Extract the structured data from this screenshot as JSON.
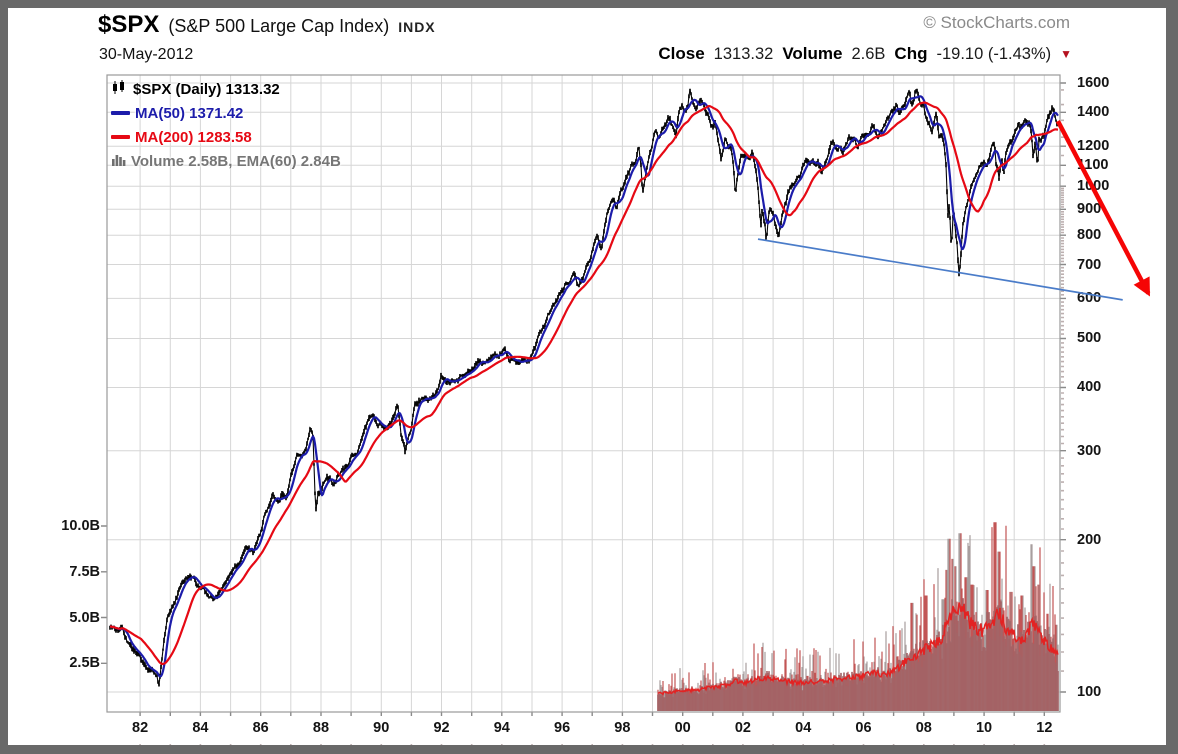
{
  "header": {
    "symbol": "$SPX",
    "index_name": "(S&P 500 Large Cap Index)",
    "exchange": "INDX",
    "date": "30-May-2012",
    "close_label": "Close",
    "close_value": "1313.32",
    "volume_label": "Volume",
    "volume_value": "2.6B",
    "chg_label": "Chg",
    "chg_value": "-19.10 (-1.43%)",
    "down_triangle": "▼",
    "watermark": "© StockCharts.com"
  },
  "legend": {
    "main": "$SPX (Daily) 1313.32",
    "ma50": "MA(50) 1371.42",
    "ma200": "MA(200) 1283.58",
    "volume": "Volume 2.58B, EMA(60) 2.84B"
  },
  "colors": {
    "candle": "#050505",
    "ma50": "#1c1caa",
    "ma200": "#e60914",
    "grid": "#d6d6d6",
    "plot_border": "#9a9a9a",
    "volume_fill": "#a26366",
    "volume_spike_gray": "#a89e9e",
    "volume_spike_red": "#c25555",
    "volume_ema": "#e32222",
    "trendline": "#4a7cc9",
    "arrow": "#f50505",
    "frame": "#696969"
  },
  "chart_data": {
    "type": "line",
    "title": "$SPX (Daily)",
    "subtitle": "S&P 500 Large Cap Index, 1981 - 30-May-2012, log scale",
    "last_close": 1313.32,
    "ma50_value": 1371.42,
    "ma200_value": 1283.58,
    "volume_value": "2.58B",
    "volume_ema60_value": "2.84B",
    "x_axis": {
      "labels": [
        "82",
        "84",
        "86",
        "88",
        "90",
        "92",
        "94",
        "96",
        "98",
        "00",
        "02",
        "04",
        "06",
        "08",
        "10",
        "12"
      ],
      "label_years": [
        1982,
        1984,
        1986,
        1988,
        1990,
        1992,
        1994,
        1996,
        1998,
        2000,
        2002,
        2004,
        2006,
        2008,
        2010,
        2012
      ],
      "range_years": [
        1981.0,
        2012.45
      ],
      "gridline_every_years": 1
    },
    "price_axis": {
      "scale": "log",
      "side": "right",
      "ticks": [
        100,
        200,
        300,
        400,
        500,
        600,
        700,
        800,
        900,
        1000,
        1100,
        1200,
        1400,
        1600
      ],
      "range": [
        95,
        1700
      ]
    },
    "volume_axis": {
      "side": "left",
      "unit": "billions",
      "tick_labels": [
        "2.5B",
        "5.0B",
        "7.5B",
        "10.0B"
      ],
      "tick_values": [
        2.5,
        5.0,
        7.5,
        10.0
      ]
    },
    "price_series": [
      [
        1981.0,
        136
      ],
      [
        1981.2,
        132
      ],
      [
        1981.4,
        133
      ],
      [
        1981.6,
        124
      ],
      [
        1981.8,
        119
      ],
      [
        1982.0,
        117
      ],
      [
        1982.2,
        112
      ],
      [
        1982.4,
        110
      ],
      [
        1982.55,
        108
      ],
      [
        1982.63,
        103
      ],
      [
        1982.75,
        119
      ],
      [
        1982.9,
        139
      ],
      [
        1983.1,
        147
      ],
      [
        1983.3,
        158
      ],
      [
        1983.5,
        167
      ],
      [
        1983.75,
        165
      ],
      [
        1984.0,
        160
      ],
      [
        1984.2,
        156
      ],
      [
        1984.45,
        150
      ],
      [
        1984.65,
        155
      ],
      [
        1984.85,
        166
      ],
      [
        1985.0,
        171
      ],
      [
        1985.25,
        181
      ],
      [
        1985.5,
        192
      ],
      [
        1985.75,
        190
      ],
      [
        1986.0,
        208
      ],
      [
        1986.2,
        232
      ],
      [
        1986.4,
        244
      ],
      [
        1986.55,
        236
      ],
      [
        1986.7,
        248
      ],
      [
        1986.85,
        243
      ],
      [
        1987.0,
        264
      ],
      [
        1987.2,
        292
      ],
      [
        1987.4,
        288
      ],
      [
        1987.55,
        310
      ],
      [
        1987.65,
        333
      ],
      [
        1987.73,
        321
      ],
      [
        1987.79,
        250
      ],
      [
        1987.83,
        227
      ],
      [
        1987.9,
        245
      ],
      [
        1988.0,
        250
      ],
      [
        1988.2,
        266
      ],
      [
        1988.4,
        261
      ],
      [
        1988.6,
        271
      ],
      [
        1988.8,
        276
      ],
      [
        1989.0,
        288
      ],
      [
        1989.2,
        297
      ],
      [
        1989.4,
        320
      ],
      [
        1989.6,
        347
      ],
      [
        1989.75,
        350
      ],
      [
        1989.85,
        341
      ],
      [
        1990.0,
        340
      ],
      [
        1990.1,
        330
      ],
      [
        1990.3,
        341
      ],
      [
        1990.5,
        362
      ],
      [
        1990.55,
        366
      ],
      [
        1990.65,
        322
      ],
      [
        1990.75,
        305
      ],
      [
        1990.79,
        297
      ],
      [
        1990.9,
        318
      ],
      [
        1991.0,
        328
      ],
      [
        1991.1,
        368
      ],
      [
        1991.3,
        378
      ],
      [
        1991.5,
        380
      ],
      [
        1991.7,
        387
      ],
      [
        1991.9,
        390
      ],
      [
        1992.0,
        412
      ],
      [
        1992.2,
        404
      ],
      [
        1992.4,
        410
      ],
      [
        1992.6,
        417
      ],
      [
        1992.8,
        421
      ],
      [
        1993.0,
        437
      ],
      [
        1993.2,
        450
      ],
      [
        1993.4,
        448
      ],
      [
        1993.6,
        459
      ],
      [
        1993.8,
        464
      ],
      [
        1994.0,
        473
      ],
      [
        1994.1,
        480
      ],
      [
        1994.25,
        446
      ],
      [
        1994.4,
        451
      ],
      [
        1994.6,
        460
      ],
      [
        1994.75,
        468
      ],
      [
        1994.9,
        454
      ],
      [
        1995.0,
        466
      ],
      [
        1995.2,
        495
      ],
      [
        1995.4,
        525
      ],
      [
        1995.6,
        560
      ],
      [
        1995.8,
        588
      ],
      [
        1996.0,
        618
      ],
      [
        1996.1,
        636
      ],
      [
        1996.25,
        648
      ],
      [
        1996.4,
        668
      ],
      [
        1996.55,
        632
      ],
      [
        1996.7,
        657
      ],
      [
        1996.85,
        707
      ],
      [
        1997.0,
        744
      ],
      [
        1997.15,
        793
      ],
      [
        1997.3,
        752
      ],
      [
        1997.45,
        855
      ],
      [
        1997.6,
        935
      ],
      [
        1997.73,
        954
      ],
      [
        1997.8,
        912
      ],
      [
        1997.9,
        958
      ],
      [
        1998.0,
        975
      ],
      [
        1998.15,
        1055
      ],
      [
        1998.3,
        1105
      ],
      [
        1998.45,
        1115
      ],
      [
        1998.54,
        1187
      ],
      [
        1998.62,
        1085
      ],
      [
        1998.67,
        957
      ],
      [
        1998.75,
        1025
      ],
      [
        1998.85,
        1120
      ],
      [
        1998.95,
        1190
      ],
      [
        1999.0,
        1230
      ],
      [
        1999.1,
        1285
      ],
      [
        1999.2,
        1240
      ],
      [
        1999.3,
        1300
      ],
      [
        1999.4,
        1335
      ],
      [
        1999.5,
        1372
      ],
      [
        1999.6,
        1330
      ],
      [
        1999.7,
        1282
      ],
      [
        1999.78,
        1250
      ],
      [
        1999.87,
        1395
      ],
      [
        1999.98,
        1465
      ],
      [
        2000.1,
        1390
      ],
      [
        2000.18,
        1425
      ],
      [
        2000.23,
        1525
      ],
      [
        2000.32,
        1450
      ],
      [
        2000.42,
        1425
      ],
      [
        2000.52,
        1478
      ],
      [
        2000.62,
        1517
      ],
      [
        2000.7,
        1480
      ],
      [
        2000.78,
        1430
      ],
      [
        2000.88,
        1400
      ],
      [
        2000.95,
        1330
      ],
      [
        2001.0,
        1325
      ],
      [
        2001.08,
        1370
      ],
      [
        2001.2,
        1240
      ],
      [
        2001.27,
        1160
      ],
      [
        2001.4,
        1255
      ],
      [
        2001.5,
        1224
      ],
      [
        2001.6,
        1210
      ],
      [
        2001.67,
        1130
      ],
      [
        2001.72,
        1040
      ],
      [
        2001.75,
        975
      ],
      [
        2001.82,
        1065
      ],
      [
        2001.92,
        1145
      ],
      [
        2002.0,
        1150
      ],
      [
        2002.1,
        1128
      ],
      [
        2002.2,
        1108
      ],
      [
        2002.3,
        1146
      ],
      [
        2002.42,
        1075
      ],
      [
        2002.5,
        990
      ],
      [
        2002.55,
        910
      ],
      [
        2002.59,
        815
      ],
      [
        2002.64,
        900
      ],
      [
        2002.68,
        870
      ],
      [
        2002.73,
        835
      ],
      [
        2002.78,
        778
      ],
      [
        2002.85,
        895
      ],
      [
        2002.92,
        915
      ],
      [
        2003.0,
        885
      ],
      [
        2003.1,
        838
      ],
      [
        2003.18,
        802
      ],
      [
        2003.3,
        862
      ],
      [
        2003.42,
        925
      ],
      [
        2003.5,
        978
      ],
      [
        2003.6,
        992
      ],
      [
        2003.7,
        1012
      ],
      [
        2003.82,
        1052
      ],
      [
        2003.92,
        1062
      ],
      [
        2004.0,
        1112
      ],
      [
        2004.1,
        1142
      ],
      [
        2004.2,
        1108
      ],
      [
        2004.3,
        1128
      ],
      [
        2004.42,
        1102
      ],
      [
        2004.5,
        1112
      ],
      [
        2004.62,
        1068
      ],
      [
        2004.72,
        1105
      ],
      [
        2004.82,
        1132
      ],
      [
        2004.92,
        1185
      ],
      [
        2005.0,
        1212
      ],
      [
        2005.1,
        1182
      ],
      [
        2005.2,
        1202
      ],
      [
        2005.3,
        1158
      ],
      [
        2005.42,
        1192
      ],
      [
        2005.52,
        1236
      ],
      [
        2005.62,
        1222
      ],
      [
        2005.72,
        1232
      ],
      [
        2005.8,
        1178
      ],
      [
        2005.92,
        1252
      ],
      [
        2006.0,
        1248
      ],
      [
        2006.1,
        1282
      ],
      [
        2006.2,
        1292
      ],
      [
        2006.32,
        1312
      ],
      [
        2006.42,
        1258
      ],
      [
        2006.47,
        1238
      ],
      [
        2006.57,
        1272
      ],
      [
        2006.67,
        1302
      ],
      [
        2006.77,
        1336
      ],
      [
        2006.88,
        1382
      ],
      [
        2007.0,
        1418
      ],
      [
        2007.1,
        1442
      ],
      [
        2007.17,
        1402
      ],
      [
        2007.27,
        1424
      ],
      [
        2007.37,
        1484
      ],
      [
        2007.47,
        1532
      ],
      [
        2007.53,
        1553
      ],
      [
        2007.58,
        1456
      ],
      [
        2007.65,
        1474
      ],
      [
        2007.72,
        1548
      ],
      [
        2007.77,
        1562
      ],
      [
        2007.85,
        1482
      ],
      [
        2007.9,
        1462
      ],
      [
        2008.0,
        1468
      ],
      [
        2008.05,
        1378
      ],
      [
        2008.12,
        1330
      ],
      [
        2008.2,
        1317
      ],
      [
        2008.27,
        1276
      ],
      [
        2008.37,
        1392
      ],
      [
        2008.42,
        1424
      ],
      [
        2008.5,
        1284
      ],
      [
        2008.6,
        1292
      ],
      [
        2008.66,
        1252
      ],
      [
        2008.71,
        1162
      ],
      [
        2008.75,
        1102
      ],
      [
        2008.78,
        942
      ],
      [
        2008.81,
        882
      ],
      [
        2008.85,
        952
      ],
      [
        2008.88,
        845
      ],
      [
        2008.92,
        748
      ],
      [
        2008.96,
        882
      ],
      [
        2009.0,
        902
      ],
      [
        2009.05,
        828
      ],
      [
        2009.1,
        788
      ],
      [
        2009.15,
        702
      ],
      [
        2009.18,
        672
      ],
      [
        2009.23,
        742
      ],
      [
        2009.3,
        852
      ],
      [
        2009.4,
        902
      ],
      [
        2009.5,
        932
      ],
      [
        2009.6,
        992
      ],
      [
        2009.7,
        1032
      ],
      [
        2009.8,
        1062
      ],
      [
        2009.87,
        1092
      ],
      [
        2009.93,
        1102
      ],
      [
        2010.0,
        1116
      ],
      [
        2010.08,
        1068
      ],
      [
        2010.15,
        1102
      ],
      [
        2010.25,
        1172
      ],
      [
        2010.3,
        1202
      ],
      [
        2010.35,
        1188
      ],
      [
        2010.4,
        1102
      ],
      [
        2010.45,
        1088
      ],
      [
        2010.5,
        1028
      ],
      [
        2010.55,
        1102
      ],
      [
        2010.6,
        1122
      ],
      [
        2010.65,
        1048
      ],
      [
        2010.72,
        1142
      ],
      [
        2010.8,
        1182
      ],
      [
        2010.9,
        1222
      ],
      [
        2011.0,
        1258
      ],
      [
        2011.1,
        1312
      ],
      [
        2011.15,
        1332
      ],
      [
        2011.2,
        1298
      ],
      [
        2011.3,
        1332
      ],
      [
        2011.35,
        1362
      ],
      [
        2011.45,
        1318
      ],
      [
        2011.5,
        1342
      ],
      [
        2011.55,
        1292
      ],
      [
        2011.6,
        1198
      ],
      [
        2011.63,
        1122
      ],
      [
        2011.67,
        1172
      ],
      [
        2011.7,
        1218
      ],
      [
        2011.75,
        1132
      ],
      [
        2011.78,
        1098
      ],
      [
        2011.83,
        1252
      ],
      [
        2011.87,
        1218
      ],
      [
        2011.92,
        1256
      ],
      [
        2012.0,
        1258
      ],
      [
        2012.05,
        1312
      ],
      [
        2012.1,
        1352
      ],
      [
        2012.15,
        1366
      ],
      [
        2012.2,
        1392
      ],
      [
        2012.25,
        1408
      ],
      [
        2012.3,
        1416
      ],
      [
        2012.33,
        1390
      ],
      [
        2012.37,
        1372
      ],
      [
        2012.41,
        1322
      ],
      [
        2012.45,
        1313
      ]
    ],
    "volume_start_year": 1999.18,
    "volume_ema_series": [
      [
        1999.18,
        0.85
      ],
      [
        1999.6,
        0.92
      ],
      [
        2000.0,
        1.0
      ],
      [
        2000.5,
        1.05
      ],
      [
        2001.0,
        1.2
      ],
      [
        2001.6,
        1.35
      ],
      [
        2001.75,
        1.55
      ],
      [
        2002.0,
        1.4
      ],
      [
        2002.5,
        1.65
      ],
      [
        2002.85,
        1.75
      ],
      [
        2003.2,
        1.55
      ],
      [
        2003.8,
        1.45
      ],
      [
        2004.5,
        1.5
      ],
      [
        2005.0,
        1.6
      ],
      [
        2005.8,
        1.75
      ],
      [
        2006.3,
        1.95
      ],
      [
        2006.8,
        1.9
      ],
      [
        2007.2,
        2.3
      ],
      [
        2007.6,
        2.9
      ],
      [
        2007.9,
        3.1
      ],
      [
        2008.2,
        3.4
      ],
      [
        2008.6,
        3.8
      ],
      [
        2008.8,
        4.9
      ],
      [
        2009.0,
        5.3
      ],
      [
        2009.25,
        5.6
      ],
      [
        2009.5,
        4.8
      ],
      [
        2009.8,
        4.4
      ],
      [
        2010.0,
        4.2
      ],
      [
        2010.35,
        5.0
      ],
      [
        2010.5,
        5.2
      ],
      [
        2010.8,
        4.2
      ],
      [
        2011.0,
        4.0
      ],
      [
        2011.3,
        3.8
      ],
      [
        2011.62,
        4.6
      ],
      [
        2011.8,
        4.2
      ],
      [
        2012.0,
        3.8
      ],
      [
        2012.2,
        3.4
      ],
      [
        2012.45,
        2.9
      ]
    ],
    "volume_spikes": [
      [
        2007.6,
        5.8
      ],
      [
        2008.07,
        6.2
      ],
      [
        2008.64,
        6.0
      ],
      [
        2008.75,
        7.6
      ],
      [
        2008.83,
        9.3
      ],
      [
        2008.95,
        8.2
      ],
      [
        2009.05,
        7.8
      ],
      [
        2009.2,
        9.6
      ],
      [
        2009.4,
        7.2
      ],
      [
        2009.6,
        6.8
      ],
      [
        2010.1,
        6.5
      ],
      [
        2010.37,
        10.2
      ],
      [
        2010.5,
        8.6
      ],
      [
        2010.9,
        6.4
      ],
      [
        2011.25,
        6.2
      ],
      [
        2011.6,
        9.0
      ],
      [
        2011.65,
        7.8
      ],
      [
        2011.8,
        6.8
      ],
      [
        2012.1,
        5.2
      ],
      [
        2012.4,
        4.6
      ]
    ],
    "trendline": {
      "from_year": 2002.5,
      "from_price": 786,
      "to_year": 2014.6,
      "to_price": 596
    },
    "annotation_arrow": {
      "from_year": 2012.45,
      "from_price": 1345,
      "to_year": 2015.45,
      "to_price": 614
    }
  }
}
